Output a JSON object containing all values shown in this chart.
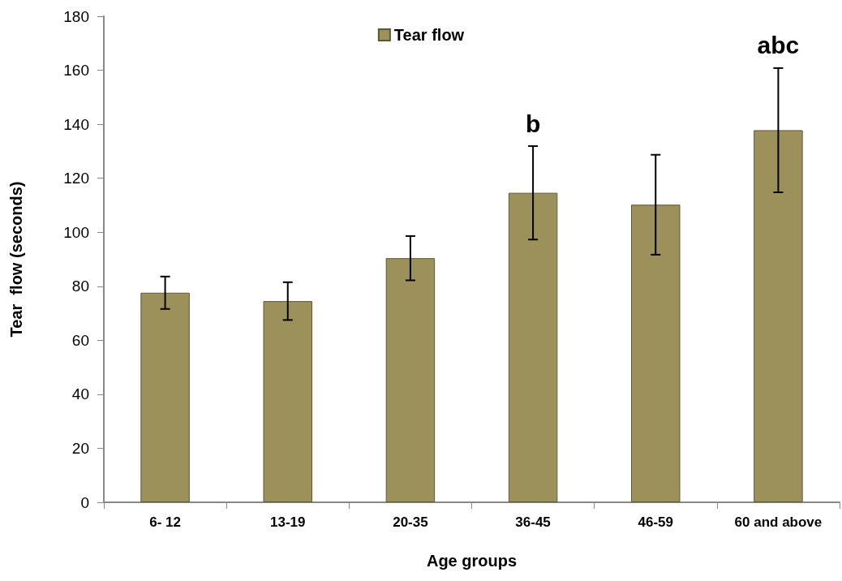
{
  "chart_data": {
    "type": "bar",
    "xlabel": "Age groups",
    "ylabel": "Tear  flow (seconds)",
    "categories": [
      "6- 12",
      "13-19",
      "20-35",
      "36-45",
      "46-59",
      "60 and above"
    ],
    "series": [
      {
        "name": "Tear flow",
        "color": "#9c915a",
        "values": [
          77.6,
          74.5,
          90.4,
          114.6,
          110.2,
          137.8
        ],
        "errors": [
          6,
          7,
          8.2,
          17.3,
          18.5,
          23
        ]
      }
    ],
    "ylim": [
      0,
      180
    ],
    "yticks": [
      0,
      20,
      40,
      60,
      80,
      100,
      120,
      140,
      160,
      180
    ],
    "grid": false,
    "legend": "top",
    "annotations": [
      "b",
      "abc"
    ]
  }
}
